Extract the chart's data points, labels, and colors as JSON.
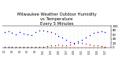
{
  "title": "Milwaukee Weather Outdoor Humidity\nvs Temperature\nEvery 5 Minutes",
  "title_fontsize": 3.8,
  "background_color": "#ffffff",
  "grid_color": "#bbbbbb",
  "blue_color": "#0000cc",
  "red_color": "#cc0000",
  "ylim": [
    0,
    100
  ],
  "xlim": [
    0,
    56
  ],
  "yticks": [
    0,
    20,
    40,
    60,
    80,
    100
  ],
  "ytick_fontsize": 2.8,
  "xtick_fontsize": 1.9,
  "blue_x": [
    1,
    3,
    5,
    7,
    9,
    11,
    13,
    15,
    17,
    19,
    21,
    23,
    25,
    27,
    29,
    31,
    33,
    35,
    37,
    39,
    41,
    43,
    45,
    47,
    49,
    51,
    53
  ],
  "blue_y": [
    72,
    75,
    68,
    60,
    70,
    65,
    60,
    58,
    70,
    78,
    80,
    75,
    72,
    65,
    55,
    45,
    35,
    25,
    22,
    28,
    35,
    45,
    58,
    68,
    72,
    75,
    70
  ],
  "red_x": [
    1,
    3,
    5,
    7,
    9,
    11,
    13,
    15,
    17,
    19,
    21,
    23,
    25,
    27,
    29,
    31,
    33,
    35,
    37,
    39,
    41,
    43,
    45,
    47,
    49,
    51,
    53
  ],
  "red_y": [
    5,
    5,
    5,
    5,
    5,
    5,
    5,
    5,
    5,
    5,
    5,
    8,
    10,
    12,
    15,
    12,
    12,
    15,
    18,
    22,
    22,
    18,
    15,
    12,
    10,
    8,
    5
  ],
  "xtick_labels": [
    "1/1",
    "",
    "1/3",
    "",
    "1/5",
    "",
    "1/7",
    "",
    "1/9",
    "",
    "1/11",
    "",
    "1/13",
    "",
    "1/15",
    "",
    "1/17",
    "",
    "1/19",
    "",
    "1/21",
    "",
    "1/23",
    "",
    "1/25",
    "",
    "1/27"
  ],
  "xtick_positions": [
    1,
    3,
    5,
    7,
    9,
    11,
    13,
    15,
    17,
    19,
    21,
    23,
    25,
    27,
    29,
    31,
    33,
    35,
    37,
    39,
    41,
    43,
    45,
    47,
    49,
    51,
    53
  ],
  "marker_size": 1.0,
  "fig_width": 1.6,
  "fig_height": 0.87,
  "dpi": 100
}
